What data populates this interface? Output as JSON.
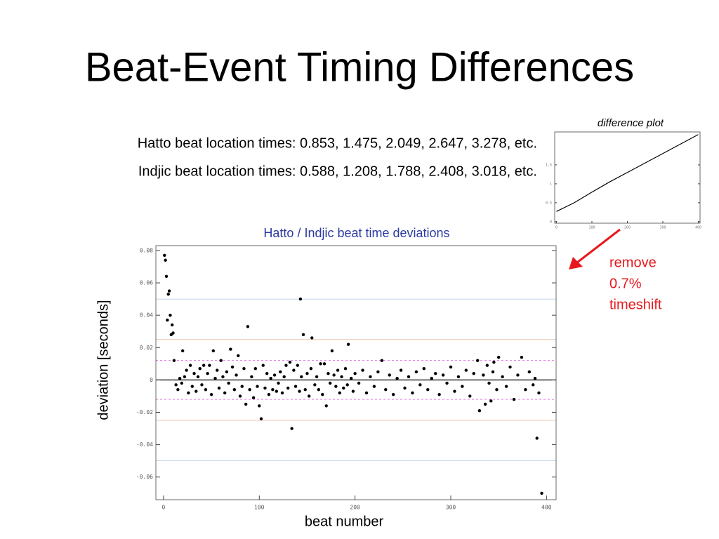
{
  "title": "Beat-Event Timing Differences",
  "lines": [
    "Hatto beat location times: 0.853, 1.475, 2.049, 2.647, 3.278, etc.",
    "Indjic beat location times: 0.588, 1.208, 1.788, 2.408, 3.018, etc."
  ],
  "annotation": [
    "remove",
    "0.7%",
    "timeshift"
  ],
  "chart_data": [
    {
      "type": "scatter",
      "title": "Hatto / Indjic beat time deviations",
      "xlabel": "beat number",
      "ylabel": "deviation [seconds]",
      "color": "#000000",
      "x": [
        1,
        2,
        3,
        4,
        5,
        6,
        7,
        8,
        9,
        10,
        11,
        13,
        15,
        17,
        19,
        20,
        22,
        24,
        26,
        28,
        30,
        32,
        34,
        36,
        38,
        40,
        42,
        44,
        46,
        48,
        50,
        52,
        54,
        56,
        58,
        60,
        62,
        64,
        66,
        68,
        70,
        72,
        74,
        76,
        78,
        80,
        82,
        84,
        86,
        88,
        90,
        92,
        94,
        96,
        98,
        100,
        102,
        104,
        106,
        108,
        110,
        112,
        114,
        116,
        118,
        120,
        122,
        124,
        126,
        128,
        130,
        132,
        134,
        136,
        138,
        140,
        142,
        143,
        144,
        146,
        148,
        150,
        152,
        154,
        155,
        158,
        160,
        162,
        164,
        166,
        168,
        170,
        172,
        174,
        176,
        178,
        180,
        182,
        184,
        186,
        188,
        190,
        192,
        193,
        196,
        198,
        200,
        204,
        208,
        212,
        216,
        220,
        224,
        228,
        232,
        236,
        240,
        244,
        248,
        252,
        256,
        260,
        264,
        268,
        272,
        276,
        280,
        284,
        288,
        292,
        296,
        300,
        304,
        308,
        312,
        316,
        320,
        324,
        328,
        330,
        334,
        336,
        338,
        340,
        342,
        344,
        345,
        348,
        350,
        354,
        358,
        362,
        366,
        370,
        374,
        378,
        382,
        386,
        388,
        390,
        392,
        395
      ],
      "values": [
        0.077,
        0.074,
        0.064,
        0.037,
        0.053,
        0.055,
        0.04,
        0.028,
        0.034,
        0.029,
        0.012,
        -0.003,
        -0.006,
        0.001,
        -0.002,
        0.018,
        0.002,
        0.006,
        -0.008,
        0.009,
        -0.004,
        0.004,
        -0.007,
        0.002,
        0.007,
        -0.003,
        0.009,
        -0.006,
        0.004,
        0.009,
        -0.009,
        0.018,
        0.001,
        0.006,
        -0.005,
        0.012,
        0.002,
        -0.008,
        0.005,
        -0.002,
        0.019,
        0.008,
        -0.006,
        0.003,
        0.015,
        -0.01,
        -0.004,
        0.007,
        -0.015,
        0.033,
        -0.006,
        0.002,
        -0.011,
        0.007,
        -0.004,
        -0.016,
        -0.024,
        0.009,
        -0.005,
        0.004,
        -0.009,
        0.001,
        -0.006,
        0.003,
        -0.007,
        -0.002,
        0.005,
        -0.008,
        0.002,
        0.009,
        -0.005,
        0.011,
        -0.03,
        0.006,
        -0.004,
        0.009,
        -0.007,
        0.05,
        0.002,
        0.028,
        -0.006,
        0.004,
        -0.01,
        0.007,
        0.026,
        -0.003,
        0.002,
        -0.006,
        0.01,
        -0.009,
        0.01,
        -0.016,
        0.004,
        -0.002,
        0.018,
        0.003,
        -0.004,
        0.006,
        -0.008,
        0.002,
        -0.005,
        0.007,
        -0.003,
        0.022,
        0.001,
        -0.007,
        0.004,
        -0.002,
        0.006,
        -0.008,
        0.002,
        -0.004,
        0.005,
        0.012,
        -0.006,
        0.003,
        -0.009,
        0.001,
        0.006,
        -0.005,
        0.002,
        -0.008,
        0.005,
        -0.003,
        0.007,
        -0.006,
        0.001,
        0.004,
        -0.009,
        0.003,
        -0.002,
        0.008,
        -0.007,
        0.002,
        -0.004,
        0.006,
        -0.01,
        0.004,
        0.012,
        -0.019,
        0.003,
        -0.015,
        0.009,
        -0.002,
        -0.013,
        0.005,
        0.011,
        -0.006,
        0.014,
        0.002,
        -0.004,
        0.008,
        -0.012,
        0.003,
        0.014,
        -0.006,
        0.005,
        -0.003,
        0.001,
        -0.036,
        -0.008,
        -0.07
      ],
      "xlim": [
        -8,
        410
      ],
      "ylim": [
        -0.074,
        0.083
      ],
      "xticks": [
        0,
        100,
        200,
        300,
        400
      ],
      "yticks": [
        -0.06,
        -0.04,
        -0.02,
        0,
        0.02,
        0.04,
        0.06,
        0.08
      ],
      "reference_lines": [
        {
          "value": 0.05,
          "color": "#a9cbe8",
          "style": "solid"
        },
        {
          "value": -0.05,
          "color": "#a9cbe8",
          "style": "solid"
        },
        {
          "value": 0.025,
          "color": "#e8b899",
          "style": "solid"
        },
        {
          "value": -0.025,
          "color": "#e8b899",
          "style": "solid"
        },
        {
          "value": 0.012,
          "color": "#e060e0",
          "style": "dashed"
        },
        {
          "value": -0.012,
          "color": "#e060e0",
          "style": "dashed"
        },
        {
          "value": 0,
          "color": "#000000",
          "style": "solid"
        }
      ]
    },
    {
      "type": "line",
      "title": "difference plot",
      "color": "#000000",
      "x": [
        0,
        50,
        100,
        150,
        200,
        250,
        300,
        350,
        400
      ],
      "values": [
        0.27,
        0.5,
        0.78,
        1.05,
        1.3,
        1.55,
        1.8,
        2.05,
        2.3
      ],
      "xlim": [
        -5,
        405
      ],
      "ylim": [
        -0.04,
        2.37
      ],
      "xticks": [
        0,
        100,
        200,
        300,
        400
      ],
      "yticks": [
        0,
        0.5,
        1,
        1.5
      ]
    }
  ]
}
